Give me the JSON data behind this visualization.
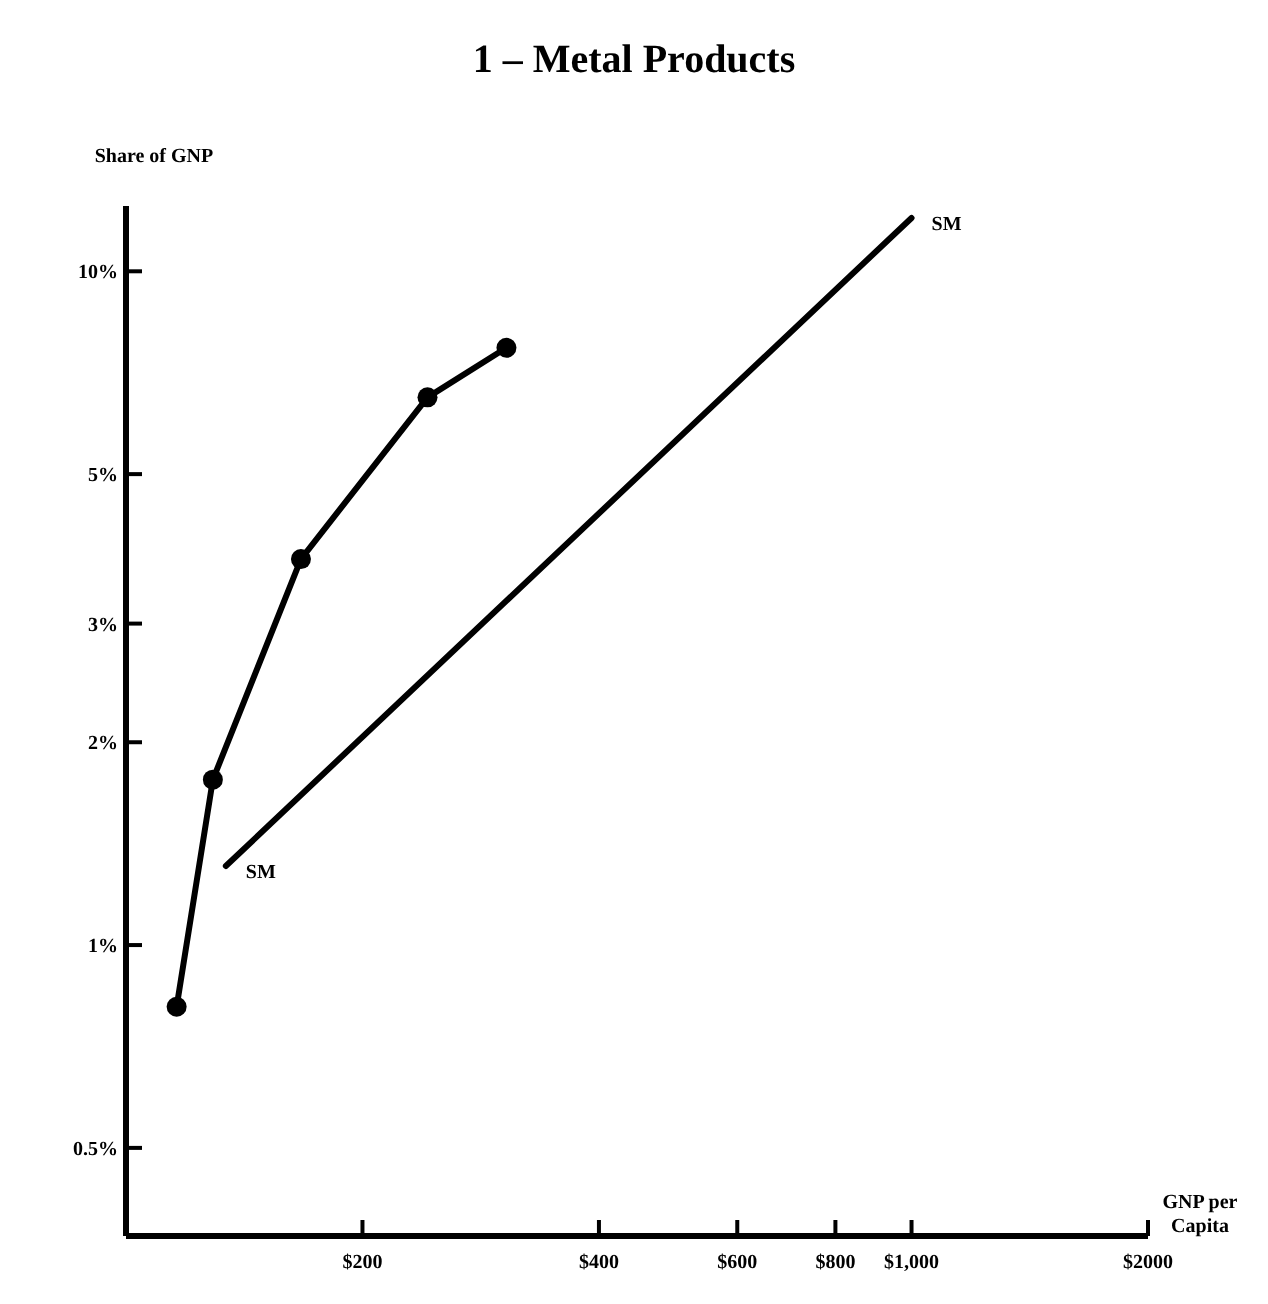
{
  "chart_data": {
    "type": "line",
    "title": "1 – Metal Products",
    "xlabel": "GNP per Capita",
    "ylabel": "Share of GNP",
    "log": "xy",
    "grid": false,
    "xlim": [
      100,
      2000
    ],
    "xticks": [
      {
        "value": 200,
        "label": "$200"
      },
      {
        "value": 400,
        "label": "$400"
      },
      {
        "value": 600,
        "label": "$600"
      },
      {
        "value": 800,
        "label": "$800"
      },
      {
        "value": 1000,
        "label": "$1,000"
      },
      {
        "value": 2000,
        "label": "$2000"
      }
    ],
    "ylim": [
      0.37,
      12.5
    ],
    "yticks": [
      {
        "value": 0.5,
        "label": "0.5%"
      },
      {
        "value": 1,
        "label": "1%"
      },
      {
        "value": 2,
        "label": "2%"
      },
      {
        "value": 3,
        "label": "3%"
      },
      {
        "value": 5,
        "label": "5%"
      },
      {
        "value": 10,
        "label": "10%"
      }
    ],
    "series": [
      {
        "color": "#000000",
        "marker": "circle",
        "x": [
          116,
          129,
          167,
          242,
          305
        ],
        "values": [
          0.81,
          1.76,
          3.74,
          6.5,
          7.7
        ]
      },
      {
        "color": "#000000",
        "marker": "none",
        "x": [
          134,
          1000
        ],
        "values": [
          1.31,
          12
        ]
      }
    ],
    "annotations": [
      {
        "text": "SM",
        "x": 134,
        "y": 1.31
      },
      {
        "text": "SM",
        "x": 1000,
        "y": 12
      }
    ]
  }
}
